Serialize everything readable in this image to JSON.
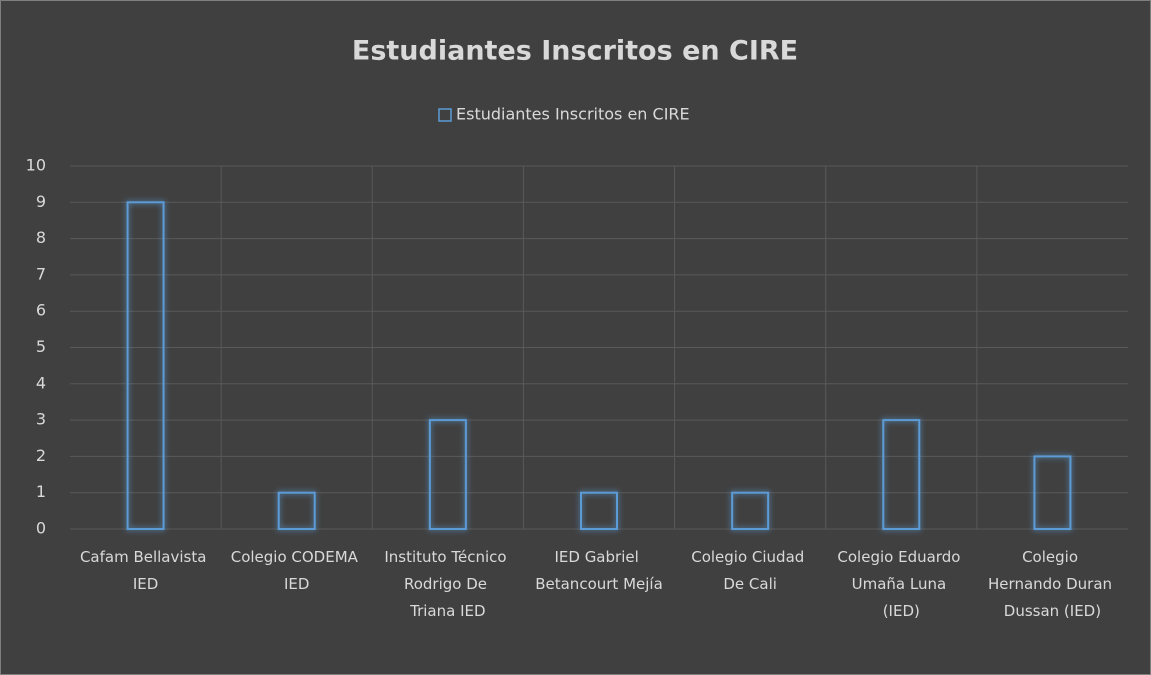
{
  "chart_data": {
    "type": "bar",
    "title": "Estudiantes Inscritos en CIRE",
    "categories": [
      "Cafam Bellavista IED",
      "Colegio CODEMA IED",
      "Instituto Técnico Rodrigo De Triana IED",
      "IED Gabriel Betancourt Mejía",
      "Colegio Ciudad De Cali",
      "Colegio Eduardo Umaña Luna (IED)",
      "Colegio Hernando Duran Dussan (IED)"
    ],
    "series": [
      {
        "name": "Estudiantes Inscritos en CIRE",
        "color": "#5b9bd5",
        "values": [
          9,
          1,
          3,
          1,
          1,
          3,
          2
        ]
      }
    ],
    "ylim": [
      0,
      10
    ],
    "yticks": [
      0,
      1,
      2,
      3,
      4,
      5,
      6,
      7,
      8,
      9,
      10
    ],
    "grid": true,
    "legend": "top"
  }
}
